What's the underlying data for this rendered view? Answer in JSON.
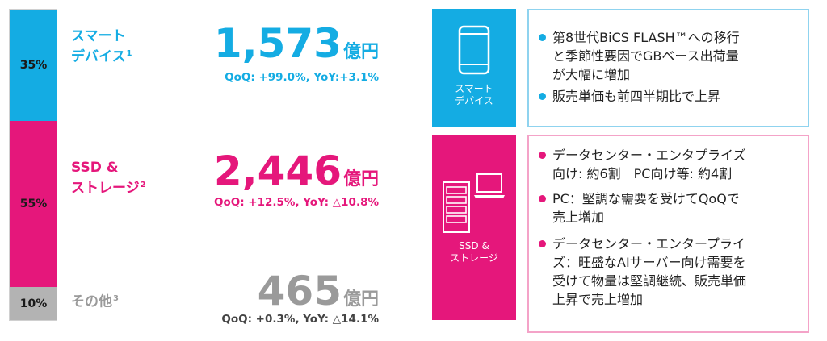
{
  "colors": {
    "cyan": "#14ace3",
    "magenta": "#e5177b",
    "gray": "#b3b3b3",
    "dark_gray": "#9a9a9a"
  },
  "segments": [
    {
      "percent": "35%",
      "share": 0.35,
      "label_line1": "スマート",
      "label_line2": "デバイス",
      "footnote": "1",
      "amount": "1,573",
      "unit": "億円",
      "growth": "QoQ: +99.0%, YoY:+3.1%"
    },
    {
      "percent": "55%",
      "share": 0.55,
      "label_line1": "SSD &",
      "label_line2": "ストレージ",
      "footnote": "2",
      "amount": "2,446",
      "unit": "億円",
      "growth": "QoQ: +12.5%, YoY: △10.8%"
    },
    {
      "percent": "10%",
      "share": 0.1,
      "label_line1": "その他",
      "footnote": "3",
      "amount": "465",
      "unit": "億円",
      "growth": "QoQ: +0.3%, YoY: △14.1%"
    }
  ],
  "categories": [
    {
      "icon": "smartphone-icon",
      "name_line1": "スマート",
      "name_line2": "デバイス",
      "bullets": [
        "第8世代BiCS FLASH™への移行\nと季節性要因でGBベース出荷量\nが大幅に増加",
        "販売単価も前四半期比で上昇"
      ]
    },
    {
      "icon": "server-laptop-icon",
      "name_line1": "SSD &",
      "name_line2": "ストレージ",
      "bullets": [
        "データセンター・エンタプライズ\n向け: 約6割　PC向け等: 約4割",
        "PC：堅調な需要を受けてQoQで\n売上増加",
        "データセンター・エンタープライ\nズ：旺盛なAIサーバー向け需要を\n受けて物量は堅調継続、販売単価\n上昇で売上増加"
      ]
    }
  ]
}
